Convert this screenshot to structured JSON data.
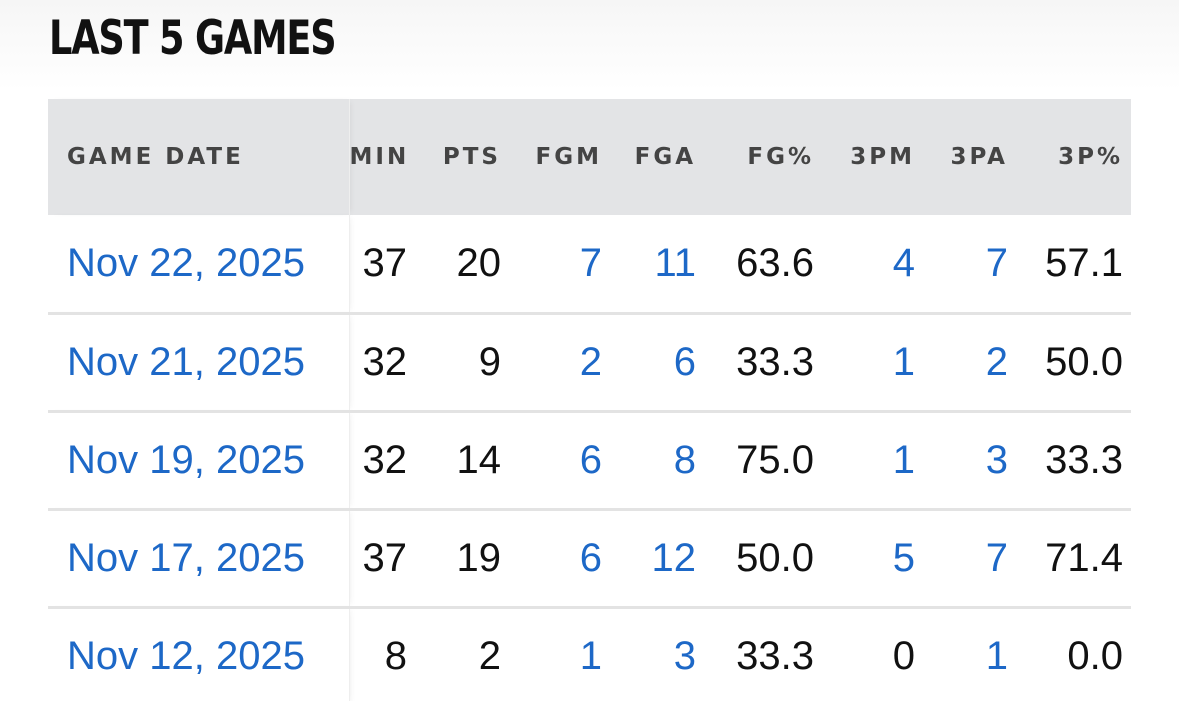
{
  "section": {
    "title": "LAST 5 GAMES"
  },
  "table": {
    "headers": {
      "game_date": "GAME DATE",
      "min": "MIN",
      "pts": "PTS",
      "fgm": "FGM",
      "fga": "FGA",
      "fg_pct": "FG%",
      "three_pm": "3PM",
      "three_pa": "3PA",
      "three_pct": "3P%"
    },
    "rows": [
      {
        "game_date": "Nov 22, 2025",
        "min": "37",
        "pts": "20",
        "fgm": "7",
        "fga": "11",
        "fg_pct": "63.6",
        "three_pm": "4",
        "three_pa": "7",
        "three_pct": "57.1"
      },
      {
        "game_date": "Nov 21, 2025",
        "min": "32",
        "pts": "9",
        "fgm": "2",
        "fga": "6",
        "fg_pct": "33.3",
        "three_pm": "1",
        "three_pa": "2",
        "three_pct": "50.0"
      },
      {
        "game_date": "Nov 19, 2025",
        "min": "32",
        "pts": "14",
        "fgm": "6",
        "fga": "8",
        "fg_pct": "75.0",
        "three_pm": "1",
        "three_pa": "3",
        "three_pct": "33.3"
      },
      {
        "game_date": "Nov 17, 2025",
        "min": "37",
        "pts": "19",
        "fgm": "6",
        "fga": "12",
        "fg_pct": "50.0",
        "three_pm": "5",
        "three_pa": "7",
        "three_pct": "71.4"
      },
      {
        "game_date": "Nov 12, 2025",
        "min": "8",
        "pts": "2",
        "fgm": "1",
        "fga": "3",
        "fg_pct": "33.3",
        "three_pm": "0",
        "three_pa": "1",
        "three_pct": "0.0"
      }
    ]
  },
  "colors": {
    "link": "#1d68c7",
    "header_bg": "#e3e4e6",
    "title": "#111111"
  }
}
